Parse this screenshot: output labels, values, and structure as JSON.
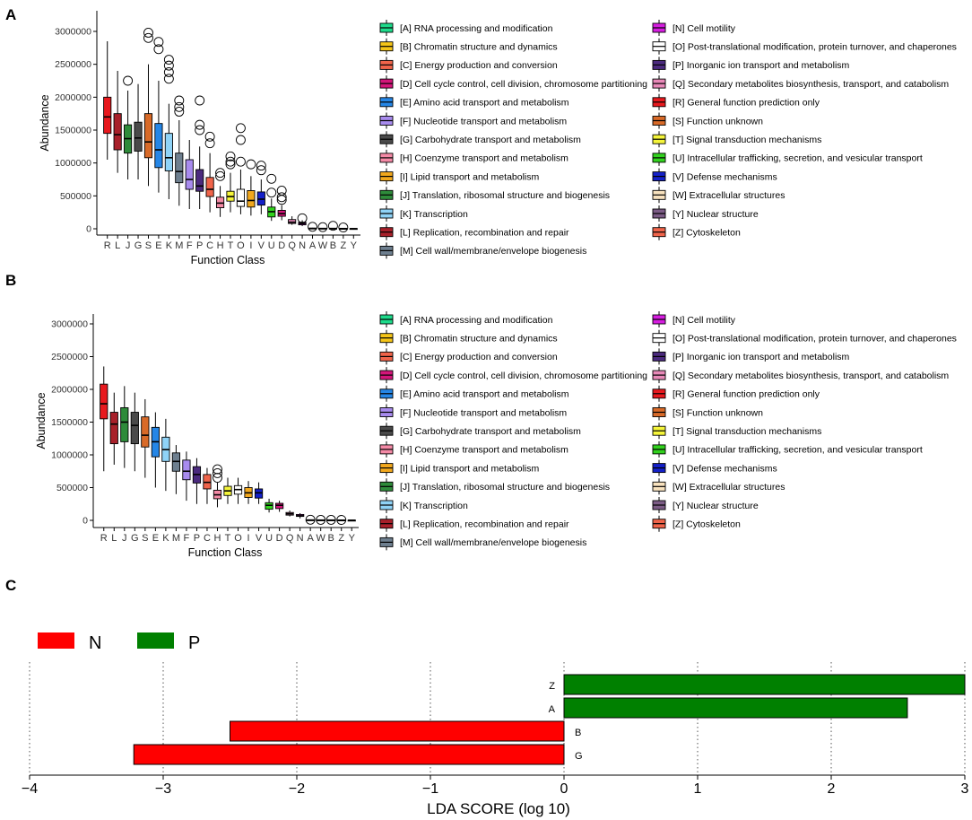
{
  "panels": {
    "a_label": "A",
    "b_label": "B",
    "c_label": "C"
  },
  "legend": {
    "left": [
      {
        "label": "[A] RNA processing and modification",
        "color": "#1EDB8B"
      },
      {
        "label": "[B] Chromatin structure and dynamics",
        "color": "#F5C518"
      },
      {
        "label": "[C] Energy production and conversion",
        "color": "#F0644A"
      },
      {
        "label": "[D] Cell cycle control, cell division, chromosome partitioning",
        "color": "#D4157A"
      },
      {
        "label": "[E] Amino acid transport and metabolism",
        "color": "#2586E6"
      },
      {
        "label": "[F] Nucleotide transport and metabolism",
        "color": "#A88BEE"
      },
      {
        "label": "[G] Carbohydrate transport and metabolism",
        "color": "#4A4A4A"
      },
      {
        "label": "[H] Coenzyme transport and metabolism",
        "color": "#F48AA6"
      },
      {
        "label": "[I] Lipid transport and metabolism",
        "color": "#F2A81D"
      },
      {
        "label": "[J] Translation, ribosomal structure and biogenesis",
        "color": "#2E8B3A"
      },
      {
        "label": "[K] Transcription",
        "color": "#8FD3F7"
      },
      {
        "label": "[L] Replication, recombination and repair",
        "color": "#A8202A"
      },
      {
        "label": "[M] Cell wall/membrane/envelope biogenesis",
        "color": "#6E7F8F"
      }
    ],
    "right": [
      {
        "label": "[N] Cell motility",
        "color": "#D61EE0"
      },
      {
        "label": "[O] Post-translational modification, protein turnover, and chaperones",
        "color": "#FFFFFF"
      },
      {
        "label": "[P] Inorganic ion transport and metabolism",
        "color": "#4B2A7E"
      },
      {
        "label": "[Q] Secondary metabolites biosynthesis, transport, and catabolism",
        "color": "#E889B8"
      },
      {
        "label": "[R] General function prediction only",
        "color": "#E8191E"
      },
      {
        "label": "[S] Function unknown",
        "color": "#D86A28"
      },
      {
        "label": "[T] Signal transduction mechanisms",
        "color": "#F5F53A"
      },
      {
        "label": "[U] Intracellular trafficking, secretion, and vesicular transport",
        "color": "#32D21E"
      },
      {
        "label": "[V] Defense mechanisms",
        "color": "#1420C8"
      },
      {
        "label": "[W] Extracellular structures",
        "color": "#F8E2BE"
      },
      {
        "label": "[Y] Nuclear structure",
        "color": "#7C5C86"
      },
      {
        "label": "[Z] Cytoskeleton",
        "color": "#F0644A"
      }
    ]
  },
  "chart_data": [
    {
      "type": "box",
      "panel": "A",
      "xlabel": "Function Class",
      "ylabel": "Abundance",
      "ylim": [
        0,
        3200000
      ],
      "yticks": [
        0,
        500000,
        1000000,
        1500000,
        2000000,
        2500000,
        3000000
      ],
      "ytick_labels": [
        "0",
        "500000",
        "1000000",
        "1500000",
        "2000000",
        "2500000",
        "3000000"
      ],
      "categories": [
        "R",
        "L",
        "J",
        "G",
        "S",
        "E",
        "K",
        "M",
        "F",
        "P",
        "C",
        "H",
        "T",
        "O",
        "I",
        "V",
        "U",
        "D",
        "Q",
        "N",
        "A",
        "W",
        "B",
        "Z",
        "Y"
      ],
      "colors": [
        "#E8191E",
        "#A8202A",
        "#2E8B3A",
        "#4A4A4A",
        "#D86A28",
        "#2586E6",
        "#8FD3F7",
        "#6E7F8F",
        "#A88BEE",
        "#4B2A7E",
        "#F0644A",
        "#F48AA6",
        "#F5F53A",
        "#FFFFFF",
        "#F2A81D",
        "#1420C8",
        "#32D21E",
        "#D4157A",
        "#E889B8",
        "#D61EE0",
        "#1EDB8B",
        "#F8E2BE",
        "#F5C518",
        "#F0644A",
        "#7C5C86"
      ],
      "boxes": [
        {
          "min": 1050000,
          "q1": 1450000,
          "median": 1700000,
          "q3": 2000000,
          "max": 2850000,
          "outliers": []
        },
        {
          "min": 850000,
          "q1": 1200000,
          "median": 1430000,
          "q3": 1750000,
          "max": 2400000,
          "outliers": []
        },
        {
          "min": 750000,
          "q1": 1150000,
          "median": 1370000,
          "q3": 1580000,
          "max": 2100000,
          "outliers": [
            2250000
          ]
        },
        {
          "min": 750000,
          "q1": 1180000,
          "median": 1380000,
          "q3": 1620000,
          "max": 2200000,
          "outliers": []
        },
        {
          "min": 650000,
          "q1": 1080000,
          "median": 1320000,
          "q3": 1750000,
          "max": 2500000,
          "outliers": [
            2980000,
            2900000
          ]
        },
        {
          "min": 550000,
          "q1": 930000,
          "median": 1200000,
          "q3": 1600000,
          "max": 2250000,
          "outliers": [
            2840000,
            2730000
          ]
        },
        {
          "min": 450000,
          "q1": 880000,
          "median": 1080000,
          "q3": 1450000,
          "max": 1900000,
          "outliers": [
            2570000,
            2480000,
            2380000,
            2280000
          ]
        },
        {
          "min": 350000,
          "q1": 700000,
          "median": 870000,
          "q3": 1150000,
          "max": 1650000,
          "outliers": [
            1950000,
            1850000,
            1780000
          ]
        },
        {
          "min": 300000,
          "q1": 600000,
          "median": 750000,
          "q3": 1050000,
          "max": 1350000,
          "outliers": []
        },
        {
          "min": 300000,
          "q1": 570000,
          "median": 650000,
          "q3": 900000,
          "max": 1250000,
          "outliers": [
            1950000,
            1580000,
            1500000
          ]
        },
        {
          "min": 250000,
          "q1": 490000,
          "median": 600000,
          "q3": 780000,
          "max": 1150000,
          "outliers": [
            1400000,
            1300000
          ]
        },
        {
          "min": 180000,
          "q1": 320000,
          "median": 390000,
          "q3": 480000,
          "max": 650000,
          "outliers": [
            850000,
            800000
          ]
        },
        {
          "min": 250000,
          "q1": 420000,
          "median": 490000,
          "q3": 570000,
          "max": 850000,
          "outliers": [
            1100000,
            1020000,
            980000
          ]
        },
        {
          "min": 220000,
          "q1": 340000,
          "median": 420000,
          "q3": 600000,
          "max": 900000,
          "outliers": [
            1530000,
            1350000,
            1020000
          ]
        },
        {
          "min": 200000,
          "q1": 330000,
          "median": 430000,
          "q3": 580000,
          "max": 800000,
          "outliers": [
            980000
          ]
        },
        {
          "min": 220000,
          "q1": 360000,
          "median": 450000,
          "q3": 560000,
          "max": 750000,
          "outliers": [
            960000,
            890000
          ]
        },
        {
          "min": 120000,
          "q1": 180000,
          "median": 260000,
          "q3": 330000,
          "max": 460000,
          "outliers": [
            760000,
            550000
          ]
        },
        {
          "min": 130000,
          "q1": 190000,
          "median": 230000,
          "q3": 280000,
          "max": 360000,
          "outliers": [
            580000,
            480000,
            440000
          ]
        },
        {
          "min": 60000,
          "q1": 80000,
          "median": 100000,
          "q3": 140000,
          "max": 190000,
          "outliers": []
        },
        {
          "min": 40000,
          "q1": 60000,
          "median": 80000,
          "q3": 100000,
          "max": 130000,
          "outliers": [
            160000
          ]
        },
        {
          "min": 0,
          "q1": 2000,
          "median": 5000,
          "q3": 10000,
          "max": 15000,
          "outliers": [
            30000
          ]
        },
        {
          "min": 0,
          "q1": 2000,
          "median": 4000,
          "q3": 8000,
          "max": 12000,
          "outliers": [
            25000
          ]
        },
        {
          "min": 0,
          "q1": 2000,
          "median": 4000,
          "q3": 8000,
          "max": 12000,
          "outliers": [
            45000
          ]
        },
        {
          "min": 0,
          "q1": 1000,
          "median": 3000,
          "q3": 6000,
          "max": 10000,
          "outliers": [
            20000
          ]
        },
        {
          "min": 0,
          "q1": 1000,
          "median": 2000,
          "q3": 4000,
          "max": 6000,
          "outliers": []
        }
      ]
    },
    {
      "type": "box",
      "panel": "B",
      "xlabel": "Function Class",
      "ylabel": "Abundance",
      "ylim": [
        -50000,
        3200000
      ],
      "yticks": [
        0,
        500000,
        1000000,
        1500000,
        2000000,
        2500000,
        3000000
      ],
      "ytick_labels": [
        "0",
        "500000",
        "1000000",
        "1500000",
        "2000000",
        "2500000",
        "3000000"
      ],
      "categories": [
        "R",
        "L",
        "J",
        "G",
        "S",
        "E",
        "K",
        "M",
        "F",
        "P",
        "C",
        "H",
        "T",
        "O",
        "I",
        "V",
        "U",
        "D",
        "Q",
        "N",
        "A",
        "W",
        "B",
        "Z",
        "Y"
      ],
      "colors": [
        "#E8191E",
        "#A8202A",
        "#2E8B3A",
        "#4A4A4A",
        "#D86A28",
        "#2586E6",
        "#8FD3F7",
        "#6E7F8F",
        "#A88BEE",
        "#4B2A7E",
        "#F0644A",
        "#F48AA6",
        "#F5F53A",
        "#FFFFFF",
        "#F2A81D",
        "#1420C8",
        "#32D21E",
        "#D4157A",
        "#E889B8",
        "#D61EE0",
        "#1EDB8B",
        "#F8E2BE",
        "#F5C518",
        "#F0644A",
        "#7C5C86"
      ],
      "boxes": [
        {
          "min": 750000,
          "q1": 1550000,
          "median": 1780000,
          "q3": 2080000,
          "max": 2350000,
          "outliers": []
        },
        {
          "min": 850000,
          "q1": 1170000,
          "median": 1470000,
          "q3": 1650000,
          "max": 1950000,
          "outliers": []
        },
        {
          "min": 800000,
          "q1": 1200000,
          "median": 1500000,
          "q3": 1720000,
          "max": 2050000,
          "outliers": []
        },
        {
          "min": 750000,
          "q1": 1170000,
          "median": 1450000,
          "q3": 1650000,
          "max": 1950000,
          "outliers": []
        },
        {
          "min": 650000,
          "q1": 1120000,
          "median": 1300000,
          "q3": 1580000,
          "max": 1850000,
          "outliers": []
        },
        {
          "min": 500000,
          "q1": 970000,
          "median": 1200000,
          "q3": 1420000,
          "max": 1650000,
          "outliers": []
        },
        {
          "min": 450000,
          "q1": 900000,
          "median": 1080000,
          "q3": 1270000,
          "max": 1550000,
          "outliers": []
        },
        {
          "min": 400000,
          "q1": 750000,
          "median": 900000,
          "q3": 1030000,
          "max": 1150000,
          "outliers": []
        },
        {
          "min": 300000,
          "q1": 620000,
          "median": 750000,
          "q3": 920000,
          "max": 1050000,
          "outliers": []
        },
        {
          "min": 250000,
          "q1": 570000,
          "median": 700000,
          "q3": 820000,
          "max": 950000,
          "outliers": []
        },
        {
          "min": 250000,
          "q1": 480000,
          "median": 580000,
          "q3": 700000,
          "max": 800000,
          "outliers": []
        },
        {
          "min": 200000,
          "q1": 330000,
          "median": 390000,
          "q3": 460000,
          "max": 580000,
          "outliers": [
            780000,
            720000,
            650000
          ]
        },
        {
          "min": 250000,
          "q1": 380000,
          "median": 450000,
          "q3": 520000,
          "max": 650000,
          "outliers": []
        },
        {
          "min": 250000,
          "q1": 400000,
          "median": 470000,
          "q3": 530000,
          "max": 650000,
          "outliers": []
        },
        {
          "min": 250000,
          "q1": 350000,
          "median": 420000,
          "q3": 500000,
          "max": 600000,
          "outliers": []
        },
        {
          "min": 250000,
          "q1": 340000,
          "median": 420000,
          "q3": 480000,
          "max": 580000,
          "outliers": []
        },
        {
          "min": 120000,
          "q1": 170000,
          "median": 230000,
          "q3": 270000,
          "max": 330000,
          "outliers": []
        },
        {
          "min": 130000,
          "q1": 180000,
          "median": 230000,
          "q3": 260000,
          "max": 300000,
          "outliers": []
        },
        {
          "min": 60000,
          "q1": 80000,
          "median": 100000,
          "q3": 120000,
          "max": 150000,
          "outliers": []
        },
        {
          "min": 30000,
          "q1": 60000,
          "median": 70000,
          "q3": 90000,
          "max": 110000,
          "outliers": []
        },
        {
          "min": 0,
          "q1": 2000,
          "median": 5000,
          "q3": 8000,
          "max": 12000,
          "outliers": [
            10000
          ]
        },
        {
          "min": 0,
          "q1": 2000,
          "median": 4000,
          "q3": 7000,
          "max": 10000,
          "outliers": [
            8000
          ]
        },
        {
          "min": 0,
          "q1": 2000,
          "median": 4000,
          "q3": 7000,
          "max": 10000,
          "outliers": [
            8000
          ]
        },
        {
          "min": 0,
          "q1": 1000,
          "median": 3000,
          "q3": 6000,
          "max": 9000,
          "outliers": [
            7000
          ]
        },
        {
          "min": 0,
          "q1": 1000,
          "median": 2000,
          "q3": 3000,
          "max": 5000,
          "outliers": []
        }
      ]
    },
    {
      "type": "bar",
      "orientation": "horizontal",
      "panel": "C",
      "xlabel": "LDA SCORE (log 10)",
      "xlim": [
        -4,
        3
      ],
      "xticks": [
        -4,
        -3,
        -2,
        -1,
        0,
        1,
        2,
        3
      ],
      "xtick_labels": [
        "−4",
        "−3",
        "−2",
        "−1",
        "0",
        "1",
        "2",
        "3"
      ],
      "legend": [
        {
          "name": "N",
          "color": "#FF0000"
        },
        {
          "name": "P",
          "color": "#008000"
        }
      ],
      "categories": [
        "Z",
        "A",
        "B",
        "G"
      ],
      "values": [
        3.0,
        2.57,
        -2.5,
        -3.22
      ],
      "groups": [
        "P",
        "P",
        "N",
        "N"
      ]
    }
  ]
}
